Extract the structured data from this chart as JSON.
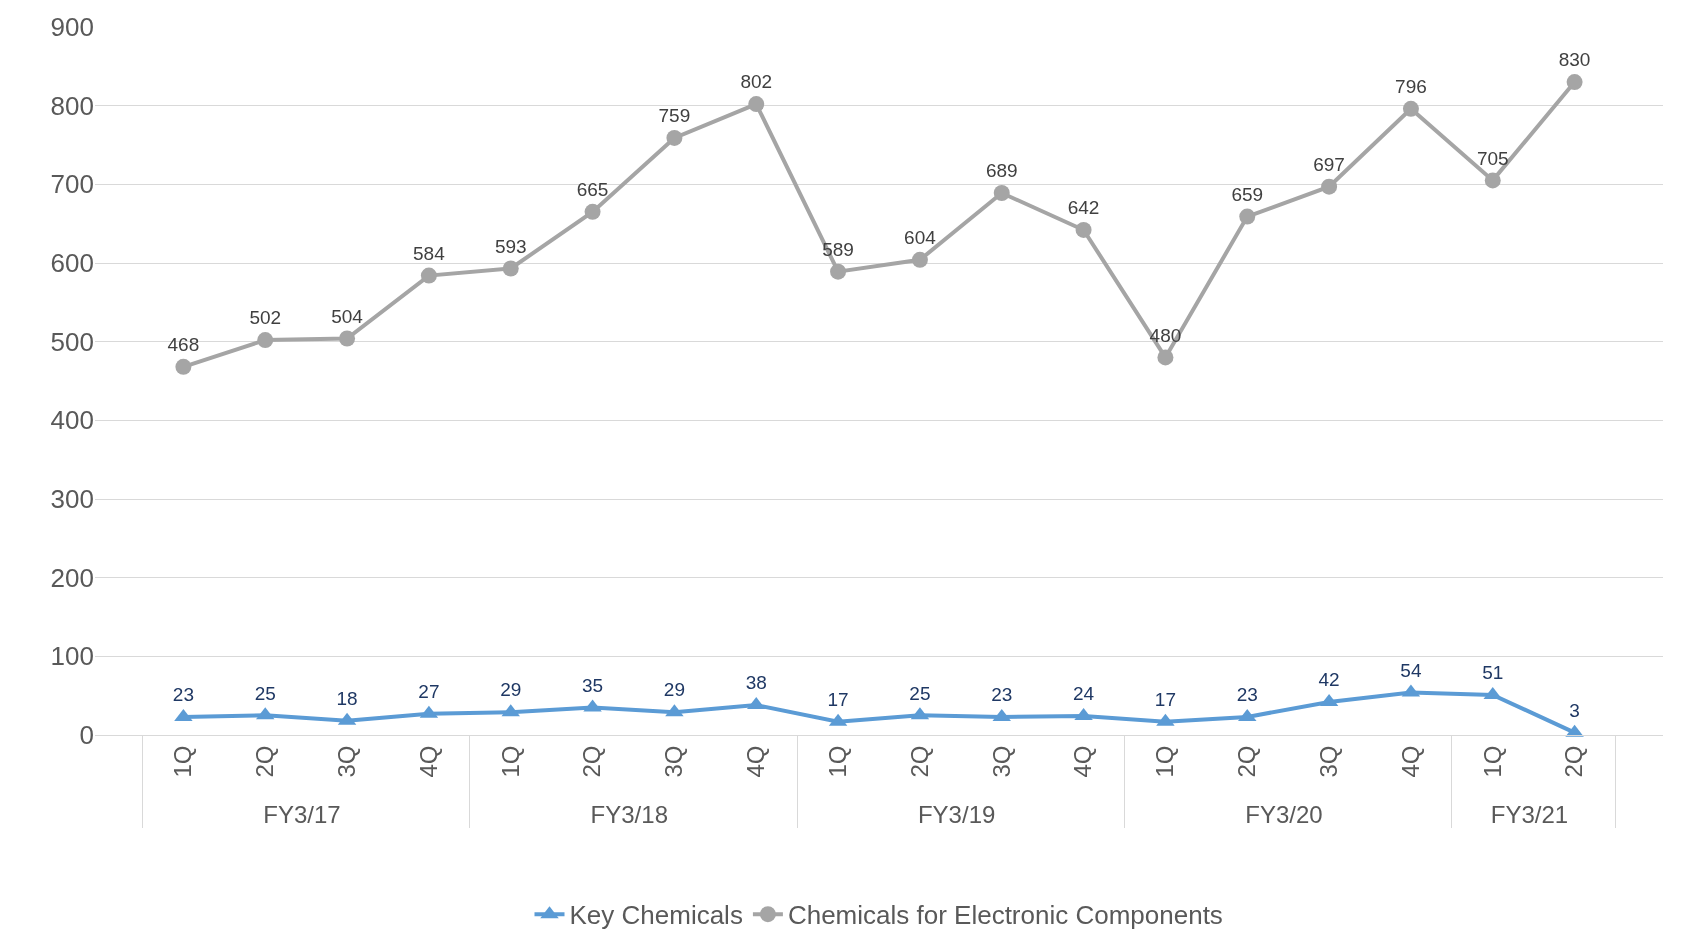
{
  "chart_data": {
    "type": "line",
    "categories": [
      "1Q",
      "2Q",
      "3Q",
      "4Q",
      "1Q",
      "2Q",
      "3Q",
      "4Q",
      "1Q",
      "2Q",
      "3Q",
      "4Q",
      "1Q",
      "2Q",
      "3Q",
      "4Q",
      "1Q",
      "2Q"
    ],
    "annotations": [
      "FY3/17",
      "FY3/18",
      "FY3/19",
      "FY3/20",
      "FY3/21"
    ],
    "series": [
      {
        "name": "Key Chemicals",
        "color": "#5b9bd5",
        "marker": "triangle",
        "values": [
          23,
          25,
          18,
          27,
          29,
          35,
          29,
          38,
          17,
          25,
          23,
          24,
          17,
          23,
          42,
          54,
          51,
          3
        ]
      },
      {
        "name": "Chemicals for Electronic Components",
        "color": "#a5a5a5",
        "marker": "circle",
        "values": [
          468,
          502,
          504,
          584,
          593,
          665,
          759,
          802,
          589,
          604,
          689,
          642,
          480,
          659,
          697,
          796,
          705,
          830
        ]
      }
    ],
    "ylim": [
      0,
      900
    ],
    "yticks": [
      0,
      100,
      200,
      300,
      400,
      500,
      600,
      700,
      800,
      900
    ],
    "grid": "y",
    "legend": "bottom",
    "data_labels": true,
    "line_style": "solid"
  }
}
